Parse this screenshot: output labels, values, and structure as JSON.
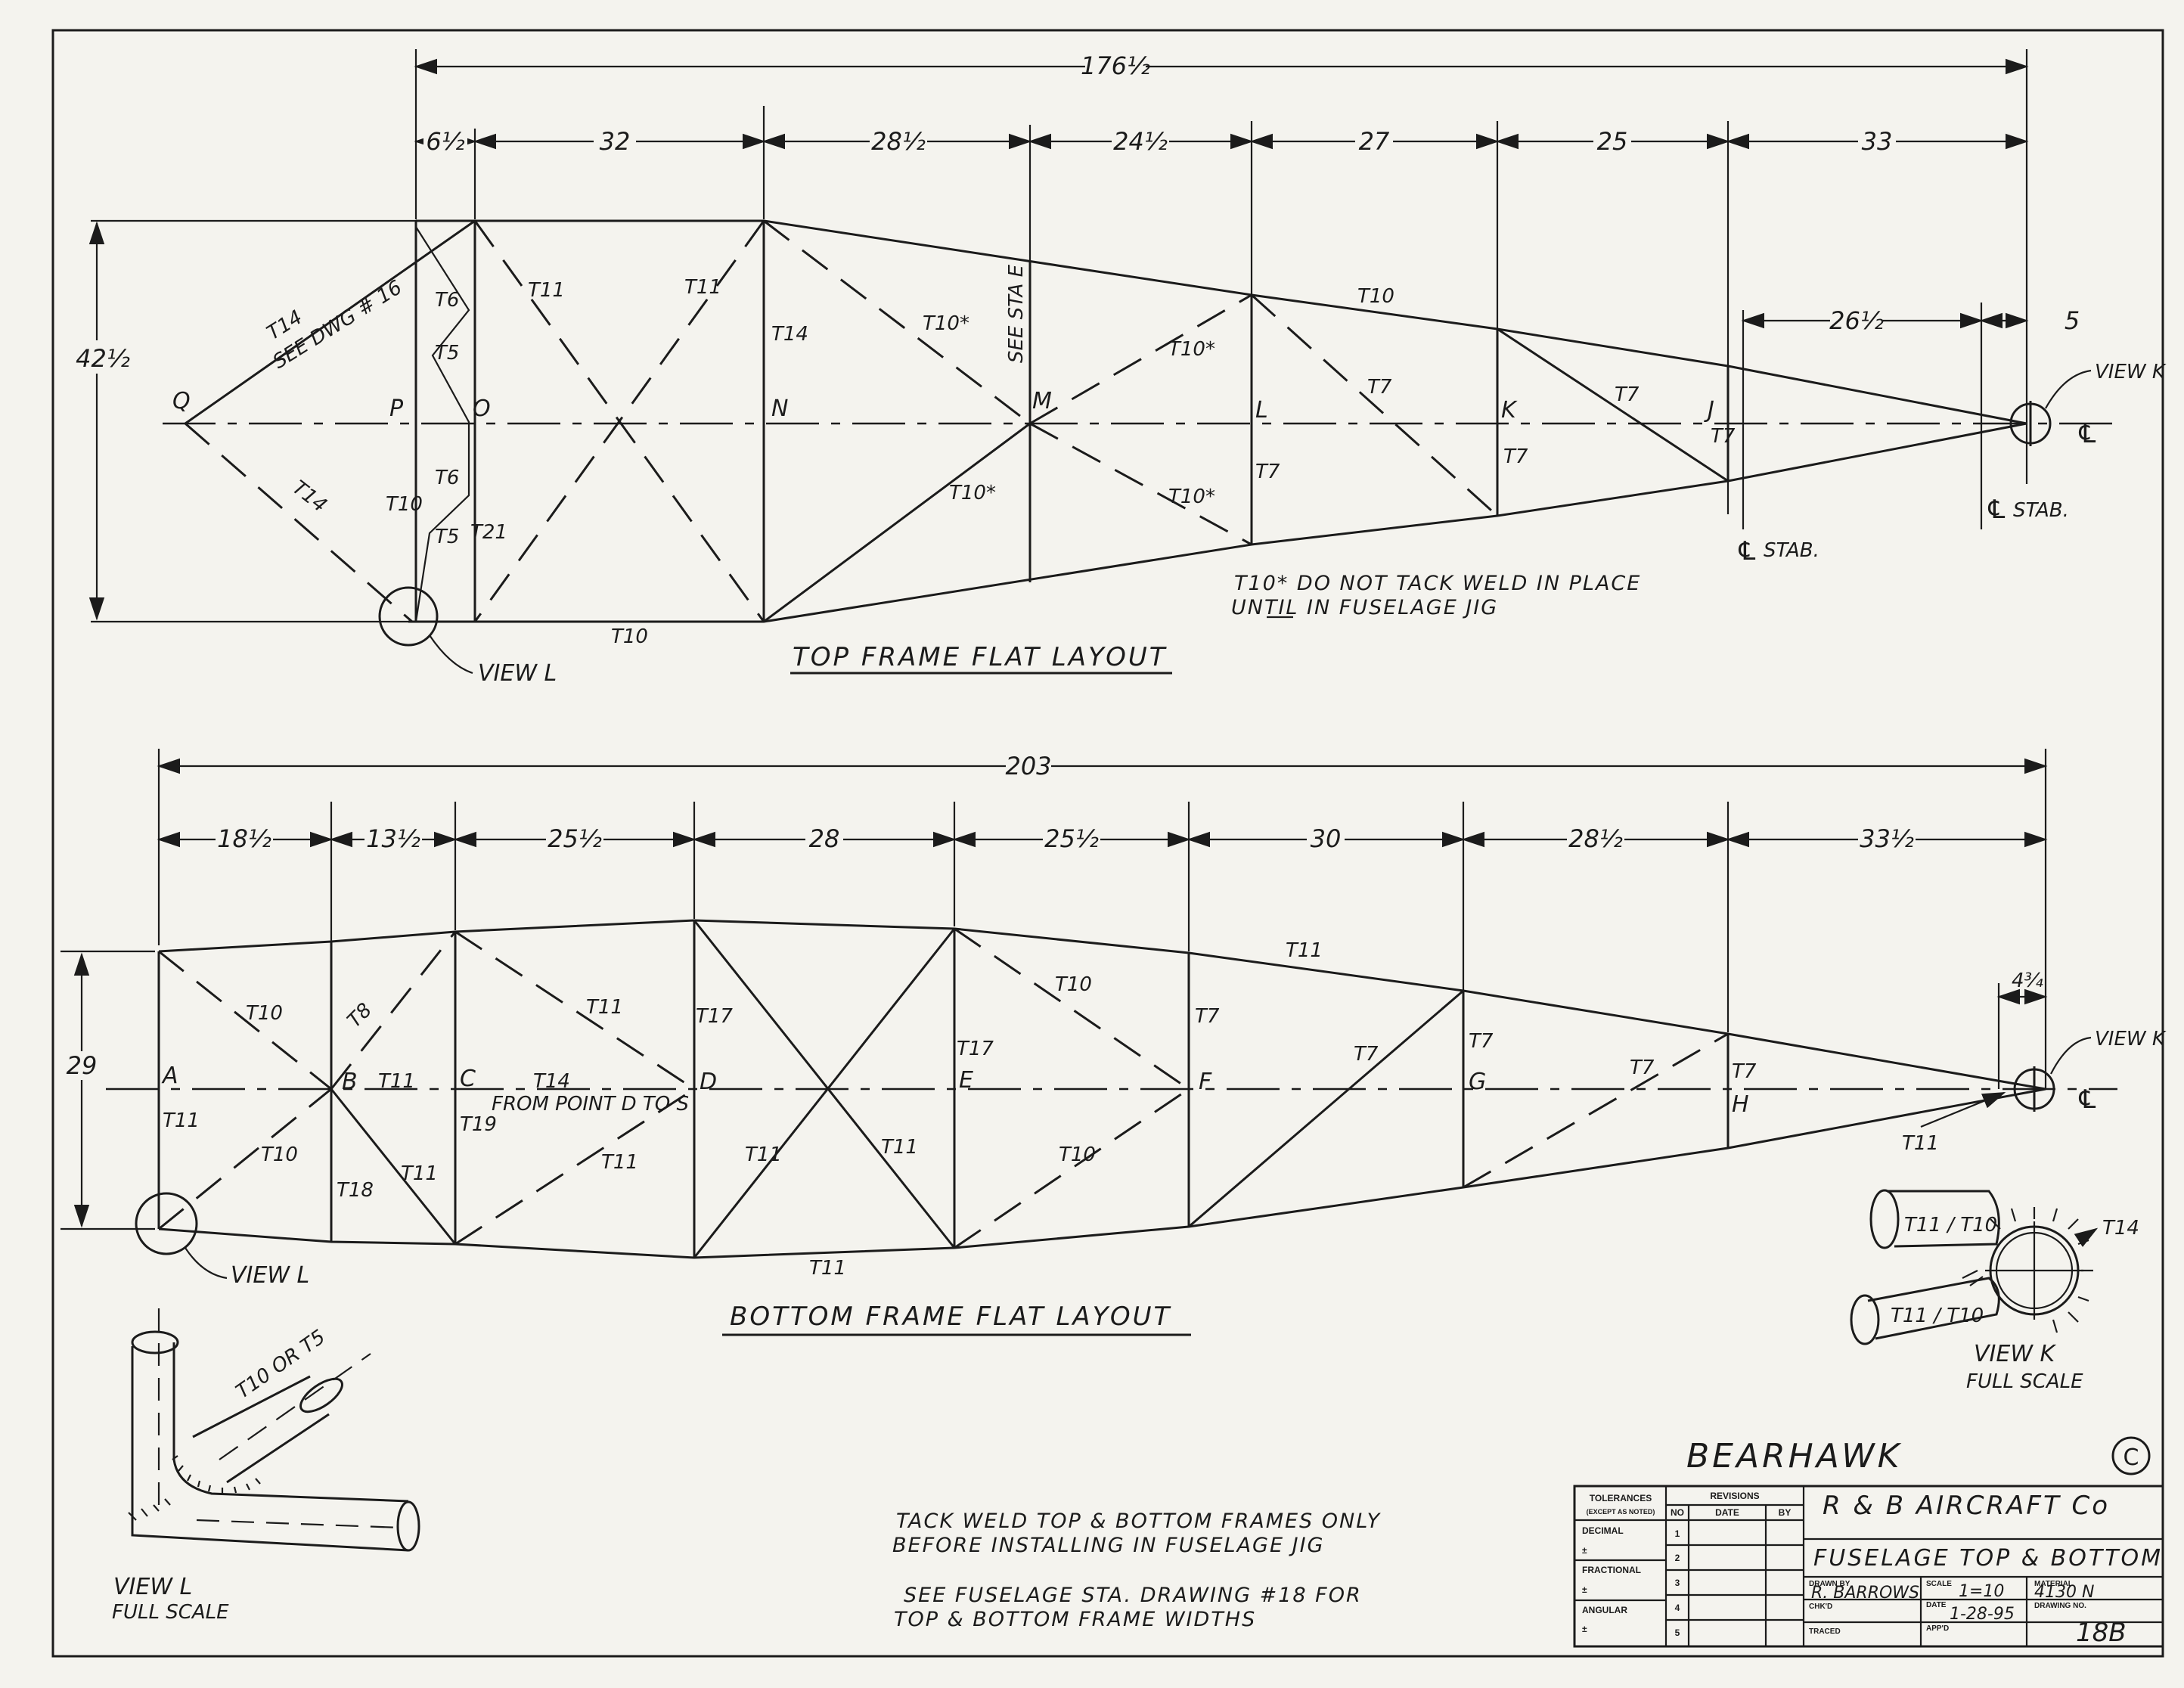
{
  "top": {
    "overall": "176½",
    "dims": [
      "6½",
      "32",
      "28½",
      "24½",
      "27",
      "25",
      "33"
    ],
    "height": "42½",
    "sub_dims": [
      "26½",
      "5"
    ],
    "points": [
      "Q",
      "P",
      "O",
      "N",
      "M",
      "L",
      "K",
      "J"
    ],
    "tubes": {
      "qp_upper": "T14",
      "see_dwg": "SEE DWG # 16",
      "qp_lower": "T14",
      "t11a": "T11",
      "t11b": "T11",
      "t14n": "T14",
      "t10s1": "T10*",
      "see_sta": "SEE STA E",
      "t10s2": "T10*",
      "t10top": "T10",
      "t7a": "T7",
      "t7b": "T7",
      "t7j": "T7",
      "t7k": "T7",
      "t7l": "T7",
      "t10s3": "T10*",
      "t10s4": "T10*",
      "t10bot": "T10",
      "t10p": "T10",
      "t21": "T21",
      "t5a": "T5",
      "t5b": "T5",
      "t6": "T6",
      "t6b": "T6"
    },
    "note_line1": "T10* DO NOT TACK WELD IN PLACE",
    "note_line2": "UNTIL IN FUSELAGE JIG",
    "title": "TOP FRAME   FLAT LAYOUT",
    "view_k": "VIEW K",
    "view_l": "VIEW L",
    "stab1": "STAB.",
    "stab2": "STAB."
  },
  "bottom": {
    "overall": "203",
    "dims": [
      "18½",
      "13½",
      "25½",
      "28",
      "25½",
      "30",
      "28½",
      "33½"
    ],
    "height": "29",
    "sub_dim": "4¾",
    "points": [
      "A",
      "B",
      "C",
      "D",
      "E",
      "F",
      "G",
      "H"
    ],
    "tubes": {
      "t10a": "T10",
      "t8": "T8",
      "t11a": "T11",
      "t17a": "T17",
      "t10b": "T10",
      "t7a": "T7",
      "t11top": "T11",
      "t7b": "T7",
      "t7c": "T7",
      "t7g": "T7",
      "t7h": "T7",
      "t11bc": "T11",
      "t14": "T14",
      "from": "FROM POINT D TO S",
      "t17e": "T17",
      "t11left": "T11",
      "t19": "T19",
      "t10c": "T10",
      "t18": "T18",
      "t11d": "T11",
      "t11e": "T11",
      "t11f": "T11",
      "t11g": "T11",
      "t10d": "T10",
      "t11bot": "T11",
      "t11k": "T11"
    },
    "title": "BOTTOM FRAME   FLAT LAYOUT",
    "view_k": "VIEW K",
    "view_l": "VIEW L"
  },
  "view_k_detail": {
    "upper": "T11 / T10",
    "lower": "T11 / T10",
    "ring": "T14",
    "caption1": "VIEW K",
    "caption2": "FULL SCALE"
  },
  "view_l_detail": {
    "tube": "T10 OR T5",
    "caption1": "VIEW L",
    "caption2": "FULL SCALE"
  },
  "notes": {
    "n1": "TACK WELD TOP & BOTTOM FRAMES ONLY",
    "n2": "BEFORE INSTALLING IN FUSELAGE JIG",
    "n3": "SEE FUSELAGE STA. DRAWING #18  FOR",
    "n4": "TOP & BOTTOM FRAME WIDTHS"
  },
  "title_block": {
    "product": "BEARHAWK",
    "copyright": "C",
    "tolerances": "TOLERANCES",
    "except": "(EXCEPT AS NOTED)",
    "decimal": "DECIMAL",
    "fractional": "FRACTIONAL",
    "angular": "ANGULAR",
    "pm": "±",
    "revisions": "REVISIONS",
    "no": "NO",
    "date": "DATE",
    "by": "BY",
    "rev_nums": [
      "1",
      "2",
      "3",
      "4",
      "5"
    ],
    "company": "R & B AIRCRAFT Co",
    "drawing_title": "FUSELAGE TOP & BOTTOM",
    "drawn_by_label": "DRAWN BY",
    "drawn_by": "R. BARROWS",
    "chkd": "CHK'D",
    "traced": "TRACED",
    "scale_label": "SCALE",
    "scale": "1=10",
    "date_label": "DATE",
    "date_val": "1-28-95",
    "appd": "APP'D",
    "material_label": "MATERIAL",
    "material": "4130 N",
    "dwg_no_label": "DRAWING NO.",
    "dwg_no": "18B"
  }
}
